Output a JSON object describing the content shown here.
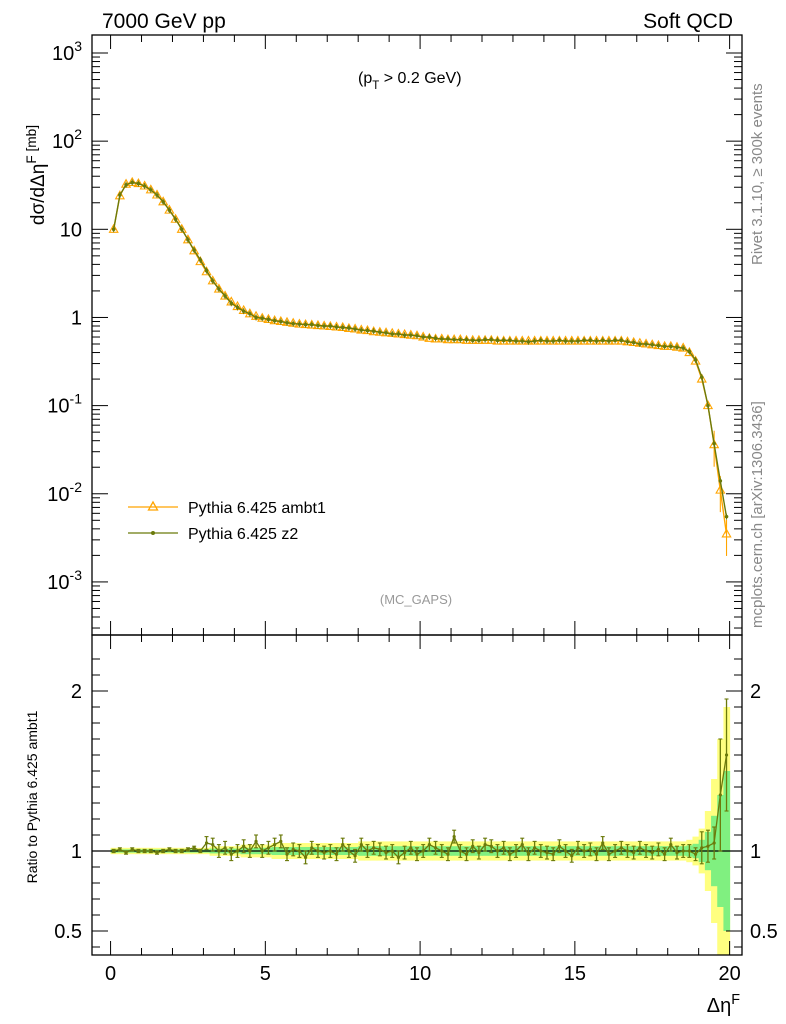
{
  "header": {
    "left": "7000 GeV pp",
    "right": "Soft QCD"
  },
  "side": {
    "rivet": "Rivet 3.1.10, ≥ 300k events",
    "mcplots": "mcplots.cern.ch [arXiv:1306.3436]"
  },
  "colors": {
    "ambt1": "#ffa500",
    "z2": "#6b7a0b",
    "band_yellow": "#ffff80",
    "band_green": "#80f080"
  },
  "chart_data": [
    {
      "type": "line",
      "scale": "log",
      "annotation": "(p_T > 0.2 GeV)",
      "watermark": "(MC_GAPS)",
      "ylabel": "dσ/dΔη^F [mb]",
      "xlim": [
        -0.6,
        20.4
      ],
      "ylim": [
        0.00025,
        1600
      ],
      "yticks": [
        {
          "v": 1000,
          "label": "10^3"
        },
        {
          "v": 100,
          "label": "10^2"
        },
        {
          "v": 10,
          "label": "10"
        },
        {
          "v": 1,
          "label": "1"
        },
        {
          "v": 0.1,
          "label": "10^-1"
        },
        {
          "v": 0.01,
          "label": "10^-2"
        },
        {
          "v": 0.001,
          "label": "10^-3"
        }
      ],
      "legend_position": "bottom-left",
      "x": [
        0.1,
        0.3,
        0.5,
        0.7,
        0.9,
        1.1,
        1.3,
        1.5,
        1.7,
        1.9,
        2.1,
        2.3,
        2.5,
        2.7,
        2.9,
        3.1,
        3.3,
        3.5,
        3.7,
        3.9,
        4.1,
        4.3,
        4.5,
        4.7,
        4.9,
        5.1,
        5.3,
        5.5,
        5.7,
        5.9,
        6.1,
        6.3,
        6.5,
        6.7,
        6.9,
        7.1,
        7.3,
        7.5,
        7.7,
        7.9,
        8.1,
        8.3,
        8.5,
        8.7,
        8.9,
        9.1,
        9.3,
        9.5,
        9.7,
        9.9,
        10.1,
        10.3,
        10.5,
        10.7,
        10.9,
        11.1,
        11.3,
        11.5,
        11.7,
        11.9,
        12.1,
        12.3,
        12.5,
        12.7,
        12.9,
        13.1,
        13.3,
        13.5,
        13.7,
        13.9,
        14.1,
        14.3,
        14.5,
        14.7,
        14.9,
        15.1,
        15.3,
        15.5,
        15.7,
        15.9,
        16.1,
        16.3,
        16.5,
        16.7,
        16.9,
        17.1,
        17.3,
        17.5,
        17.7,
        17.9,
        18.1,
        18.3,
        18.5,
        18.7,
        18.9,
        19.1,
        19.3,
        19.5,
        19.7,
        19.9
      ],
      "series": [
        {
          "name": "Pythia 6.425 ambt1",
          "marker": "triangle",
          "values": [
            10.0,
            24.0,
            32.5,
            34.0,
            33.0,
            31.0,
            28.0,
            24.5,
            20.5,
            16.5,
            13.0,
            10.0,
            7.6,
            5.7,
            4.3,
            3.3,
            2.6,
            2.1,
            1.75,
            1.5,
            1.33,
            1.2,
            1.1,
            1.03,
            0.98,
            0.95,
            0.92,
            0.9,
            0.88,
            0.86,
            0.84,
            0.83,
            0.82,
            0.81,
            0.8,
            0.79,
            0.78,
            0.77,
            0.75,
            0.74,
            0.72,
            0.71,
            0.69,
            0.68,
            0.67,
            0.66,
            0.65,
            0.64,
            0.63,
            0.62,
            0.6,
            0.58,
            0.57,
            0.57,
            0.56,
            0.56,
            0.56,
            0.55,
            0.55,
            0.55,
            0.55,
            0.55,
            0.54,
            0.54,
            0.54,
            0.54,
            0.54,
            0.54,
            0.54,
            0.54,
            0.54,
            0.54,
            0.54,
            0.54,
            0.54,
            0.54,
            0.54,
            0.54,
            0.54,
            0.54,
            0.54,
            0.54,
            0.54,
            0.53,
            0.52,
            0.51,
            0.5,
            0.49,
            0.48,
            0.47,
            0.47,
            0.46,
            0.45,
            0.4,
            0.32,
            0.2,
            0.1,
            0.036,
            0.011,
            0.0035
          ]
        },
        {
          "name": "Pythia 6.425 z2",
          "marker": "dot",
          "values": [
            10.0,
            24.5,
            32.0,
            34.0,
            33.0,
            31.0,
            28.0,
            24.5,
            20.5,
            16.5,
            13.0,
            10.0,
            7.6,
            5.8,
            4.5,
            3.4,
            2.6,
            2.1,
            1.75,
            1.45,
            1.3,
            1.18,
            1.1,
            1.0,
            0.98,
            0.95,
            0.92,
            0.9,
            0.87,
            0.85,
            0.84,
            0.83,
            0.83,
            0.81,
            0.8,
            0.8,
            0.78,
            0.77,
            0.76,
            0.74,
            0.72,
            0.71,
            0.7,
            0.68,
            0.67,
            0.65,
            0.65,
            0.63,
            0.63,
            0.62,
            0.6,
            0.6,
            0.58,
            0.57,
            0.57,
            0.56,
            0.56,
            0.56,
            0.55,
            0.55,
            0.56,
            0.56,
            0.55,
            0.55,
            0.55,
            0.54,
            0.54,
            0.53,
            0.54,
            0.55,
            0.54,
            0.54,
            0.55,
            0.54,
            0.54,
            0.54,
            0.55,
            0.55,
            0.54,
            0.55,
            0.54,
            0.55,
            0.55,
            0.53,
            0.52,
            0.5,
            0.5,
            0.49,
            0.48,
            0.47,
            0.47,
            0.46,
            0.45,
            0.41,
            0.33,
            0.21,
            0.1,
            0.037,
            0.014,
            0.0055
          ]
        }
      ]
    },
    {
      "type": "line",
      "ylabel": "Ratio to Pythia 6.425 ambt1",
      "xlabel": "Δη^F",
      "xlim": [
        -0.6,
        20.4
      ],
      "ylim": [
        0.35,
        2.35
      ],
      "yticks": [
        0.5,
        1,
        2
      ],
      "xticks": [
        0,
        5,
        10,
        15,
        20
      ],
      "reference_line": 1,
      "x": [
        0.1,
        0.3,
        0.5,
        0.7,
        0.9,
        1.1,
        1.3,
        1.5,
        1.7,
        1.9,
        2.1,
        2.3,
        2.5,
        2.7,
        2.9,
        3.1,
        3.3,
        3.5,
        3.7,
        3.9,
        4.1,
        4.3,
        4.5,
        4.7,
        4.9,
        5.1,
        5.3,
        5.5,
        5.7,
        5.9,
        6.1,
        6.3,
        6.5,
        6.7,
        6.9,
        7.1,
        7.3,
        7.5,
        7.7,
        7.9,
        8.1,
        8.3,
        8.5,
        8.7,
        8.9,
        9.1,
        9.3,
        9.5,
        9.7,
        9.9,
        10.1,
        10.3,
        10.5,
        10.7,
        10.9,
        11.1,
        11.3,
        11.5,
        11.7,
        11.9,
        12.1,
        12.3,
        12.5,
        12.7,
        12.9,
        13.1,
        13.3,
        13.5,
        13.7,
        13.9,
        14.1,
        14.3,
        14.5,
        14.7,
        14.9,
        15.1,
        15.3,
        15.5,
        15.7,
        15.9,
        16.1,
        16.3,
        16.5,
        16.7,
        16.9,
        17.1,
        17.3,
        17.5,
        17.7,
        17.9,
        18.1,
        18.3,
        18.5,
        18.7,
        18.9,
        19.1,
        19.3,
        19.5,
        19.7,
        19.9
      ],
      "series": [
        {
          "name": "Pythia 6.425 z2",
          "values": [
            1.0,
            1.01,
            0.99,
            1.01,
            1.0,
            1.0,
            1.0,
            0.99,
            1.0,
            1.01,
            1.0,
            1.0,
            1.01,
            1.02,
            1.0,
            1.05,
            1.04,
            1.0,
            1.02,
            0.98,
            1.0,
            1.03,
            1.0,
            1.06,
            1.0,
            1.02,
            1.04,
            1.06,
            0.98,
            1.01,
            1.0,
            0.96,
            1.02,
            1.0,
            0.99,
            1.0,
            0.98,
            1.04,
            1.0,
            0.97,
            1.04,
            1.0,
            1.02,
            1.01,
            0.99,
            1.0,
            0.96,
            0.99,
            1.02,
            0.98,
            1.0,
            1.04,
            1.02,
            1.0,
            0.98,
            1.09,
            1.0,
            0.98,
            1.03,
            0.99,
            1.04,
            1.03,
            1.0,
            1.02,
            0.98,
            1.0,
            1.04,
            0.98,
            1.02,
            1.0,
            0.99,
            0.98,
            1.03,
            1.0,
            0.97,
            1.02,
            1.0,
            1.01,
            0.98,
            1.05,
            0.98,
            1.0,
            1.02,
            1.0,
            0.99,
            1.02,
            1.0,
            0.99,
            1.01,
            0.98,
            1.04,
            0.99,
            1.0,
            1.0,
            0.98,
            1.02,
            1.03,
            1.05,
            1.35,
            1.6
          ]
        }
      ],
      "bands": {
        "yellow_half_width": [
          0.02,
          0.02,
          0.02,
          0.02,
          0.02,
          0.02,
          0.02,
          0.02,
          0.02,
          0.02,
          0.02,
          0.02,
          0.02,
          0.02,
          0.02,
          0.02,
          0.03,
          0.03,
          0.03,
          0.03,
          0.03,
          0.04,
          0.04,
          0.04,
          0.04,
          0.04,
          0.05,
          0.05,
          0.05,
          0.05,
          0.05,
          0.05,
          0.05,
          0.05,
          0.05,
          0.05,
          0.05,
          0.05,
          0.05,
          0.05,
          0.06,
          0.06,
          0.06,
          0.06,
          0.06,
          0.06,
          0.06,
          0.06,
          0.06,
          0.06,
          0.06,
          0.06,
          0.06,
          0.06,
          0.06,
          0.06,
          0.06,
          0.06,
          0.06,
          0.06,
          0.06,
          0.06,
          0.06,
          0.06,
          0.06,
          0.06,
          0.06,
          0.06,
          0.06,
          0.06,
          0.06,
          0.06,
          0.06,
          0.06,
          0.06,
          0.06,
          0.06,
          0.06,
          0.06,
          0.06,
          0.06,
          0.06,
          0.06,
          0.06,
          0.06,
          0.06,
          0.06,
          0.06,
          0.06,
          0.06,
          0.06,
          0.06,
          0.06,
          0.07,
          0.09,
          0.14,
          0.25,
          0.45,
          0.7,
          0.9
        ],
        "green_half_width": [
          0.01,
          0.01,
          0.01,
          0.01,
          0.01,
          0.01,
          0.01,
          0.01,
          0.01,
          0.01,
          0.01,
          0.01,
          0.01,
          0.01,
          0.01,
          0.01,
          0.015,
          0.015,
          0.015,
          0.015,
          0.015,
          0.02,
          0.02,
          0.02,
          0.02,
          0.02,
          0.025,
          0.025,
          0.025,
          0.025,
          0.025,
          0.025,
          0.025,
          0.025,
          0.025,
          0.025,
          0.025,
          0.025,
          0.025,
          0.025,
          0.03,
          0.03,
          0.03,
          0.03,
          0.03,
          0.03,
          0.03,
          0.03,
          0.03,
          0.03,
          0.03,
          0.03,
          0.03,
          0.03,
          0.03,
          0.03,
          0.03,
          0.03,
          0.03,
          0.03,
          0.03,
          0.03,
          0.03,
          0.03,
          0.03,
          0.03,
          0.03,
          0.03,
          0.03,
          0.03,
          0.03,
          0.03,
          0.03,
          0.03,
          0.03,
          0.03,
          0.03,
          0.03,
          0.03,
          0.03,
          0.03,
          0.03,
          0.03,
          0.03,
          0.03,
          0.03,
          0.03,
          0.03,
          0.03,
          0.03,
          0.03,
          0.03,
          0.03,
          0.035,
          0.045,
          0.07,
          0.12,
          0.22,
          0.35,
          0.5
        ]
      }
    }
  ]
}
